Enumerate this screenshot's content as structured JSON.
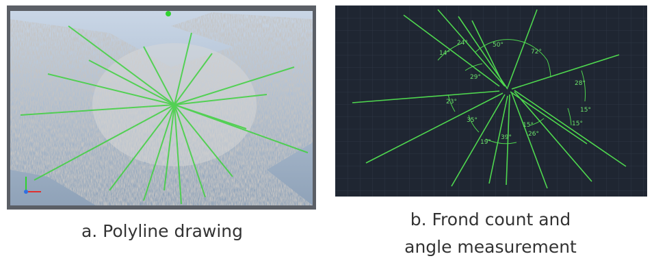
{
  "panels": [
    {
      "caption": "a. Polyline drawing"
    },
    {
      "caption_lines": [
        "b. Frond count and",
        "angle measurement"
      ],
      "angle_labels": [
        "50°",
        "72°",
        "24°",
        "14°",
        "29°",
        "28°",
        "23°",
        "15°",
        "35°",
        "15°",
        "15°",
        "19°",
        "39°",
        "26°"
      ]
    }
  ]
}
